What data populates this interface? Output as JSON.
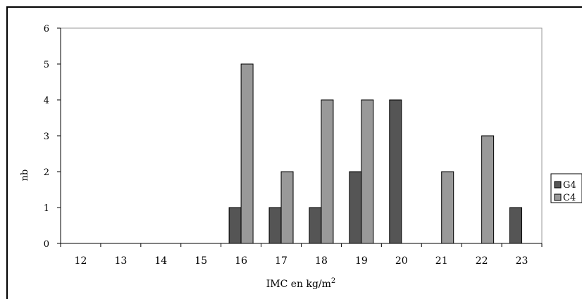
{
  "chart_data": {
    "type": "bar",
    "categories": [
      "12",
      "13",
      "14",
      "15",
      "16",
      "17",
      "18",
      "19",
      "20",
      "21",
      "22",
      "23"
    ],
    "series": [
      {
        "name": "G4",
        "values": [
          0,
          0,
          0,
          0,
          1,
          1,
          1,
          2,
          4,
          0,
          0,
          1
        ],
        "color": "#555555"
      },
      {
        "name": "C4",
        "values": [
          0,
          0,
          0,
          0,
          5,
          2,
          4,
          4,
          0,
          2,
          3,
          0
        ],
        "color": "#999999"
      }
    ],
    "title": "",
    "xlabel": "IMC en kg/m",
    "xlabel_superscript": "2",
    "ylabel": "nb",
    "ylim": [
      0,
      6
    ],
    "yticks": [
      "0",
      "1",
      "2",
      "3",
      "4",
      "5",
      "6"
    ],
    "grid": false,
    "legend_position": "right"
  }
}
